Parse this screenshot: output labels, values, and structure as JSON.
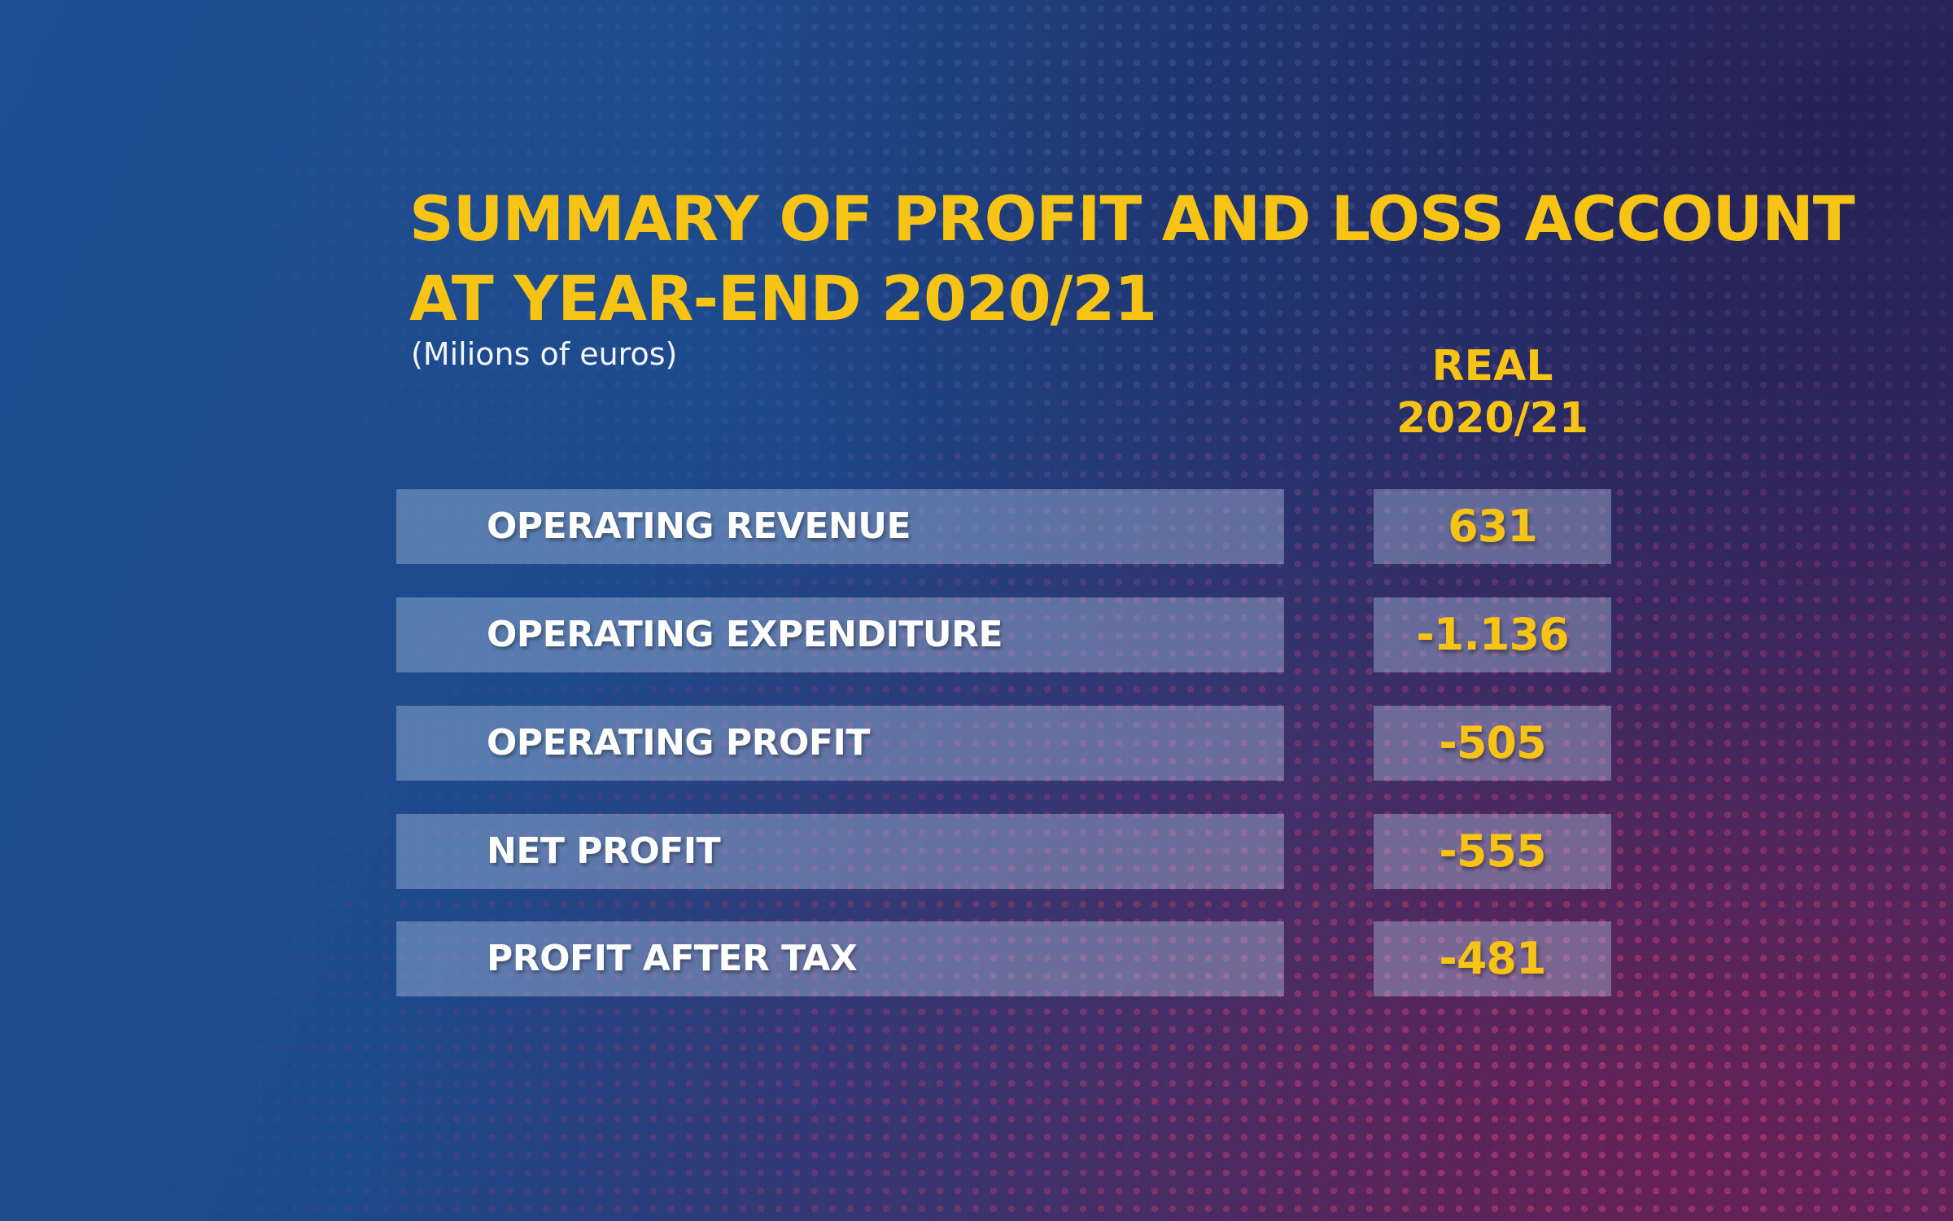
{
  "chart_data": {
    "type": "table",
    "title_lines": [
      "SUMMARY OF PROFIT AND LOSS ACCOUNT",
      "AT YEAR-END 2020/21"
    ],
    "subtitle": "(Milions of euros)",
    "column_header_lines": [
      "REAL",
      "2020/21"
    ],
    "rows": [
      {
        "label": "OPERATING REVENUE",
        "value": "631"
      },
      {
        "label": "OPERATING EXPENDITURE",
        "value": "-1.136"
      },
      {
        "label": "OPERATING PROFIT",
        "value": "-505"
      },
      {
        "label": "NET PROFIT",
        "value": "-555"
      },
      {
        "label": "PROFIT AFTER TAX",
        "value": "-481"
      }
    ]
  },
  "colors": {
    "accent": "#f7c416",
    "background_blue": "#1e4f92",
    "background_garnet": "#a4214f",
    "row_fill": "#b9cdeb"
  }
}
